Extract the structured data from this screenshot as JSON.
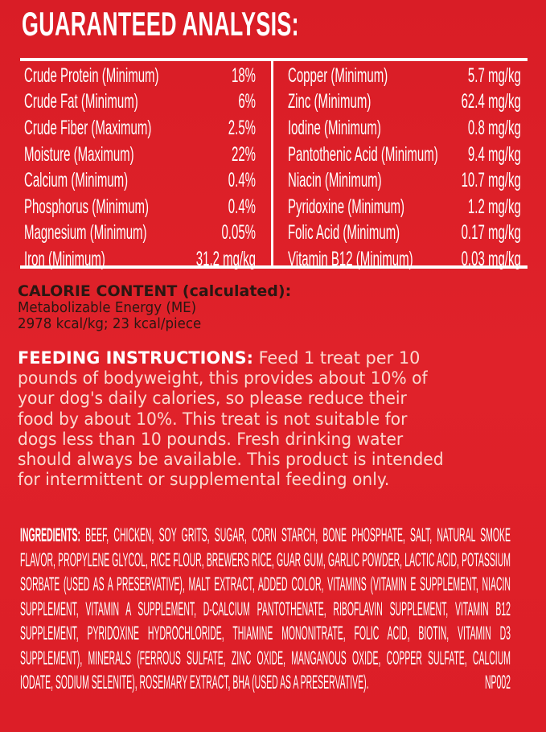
{
  "colors": {
    "background": "#dc1f27",
    "text": "#ffffff",
    "calorie_text": "#2b1712",
    "feeding_text": "#fbd9cf"
  },
  "title": "GUARANTEED ANALYSIS:",
  "analysis_left": [
    {
      "label": "Crude Protein (Minimum)",
      "value": "18%"
    },
    {
      "label": "Crude Fat (Minimum)",
      "value": "6%"
    },
    {
      "label": "Crude Fiber (Maximum)",
      "value": "2.5%"
    },
    {
      "label": "Moisture (Maximum)",
      "value": "22%"
    },
    {
      "label": "Calcium (Minimum)",
      "value": "0.4%"
    },
    {
      "label": "Phosphorus (Minimum)",
      "value": "0.4%"
    },
    {
      "label": "Magnesium (Minimum)",
      "value": "0.05%"
    },
    {
      "label": "Iron (Minimum)",
      "value": "31.2 mg/kg"
    }
  ],
  "analysis_right": [
    {
      "label": "Copper (Minimum)",
      "value": "5.7 mg/kg"
    },
    {
      "label": "Zinc (Minimum)",
      "value": "62.4 mg/kg"
    },
    {
      "label": "Iodine (Minimum)",
      "value": "0.8 mg/kg"
    },
    {
      "label": "Pantothenic Acid (Minimum)",
      "value": "9.4 mg/kg"
    },
    {
      "label": "Niacin (Minimum)",
      "value": "10.7 mg/kg"
    },
    {
      "label": "Pyridoxine (Minimum)",
      "value": "1.2 mg/kg"
    },
    {
      "label": "Folic Acid (Minimum)",
      "value": "0.17 mg/kg"
    },
    {
      "label": "Vitamin B12 (Minimum)",
      "value": "0.03 mg/kg"
    }
  ],
  "calorie": {
    "heading": "CALORIE CONTENT (calculated):",
    "line1": "Metabolizable Energy (ME)",
    "line2": "2978 kcal/kg; 23 kcal/piece"
  },
  "feeding": {
    "heading": "FEEDING INSTRUCTIONS:",
    "first_line": " Feed 1 treat per 10",
    "lines": [
      "pounds of bodyweight, this provides about 10% of",
      "your dog's daily calories, so please reduce their",
      "food by about 10%. This treat is not suitable for",
      "dogs less than 10 pounds. Fresh drinking water",
      "should always be available. This product is intended",
      "for intermittent or supplemental feeding only."
    ]
  },
  "ingredients": {
    "heading": "INGREDIENTS:",
    "first_line": " BEEF, CHICKEN, SOY GRITS, SUGAR, CORN STARCH, BONE PHOSPHATE, SALT, NATURAL SMOKE",
    "lines": [
      "FLAVOR, PROPYLENE GLYCOL, RICE FLOUR, BREWERS RICE, GUAR GUM, GARLIC POWDER, LACTIC ACID, POTASSIUM",
      "SORBATE (USED AS A PRESERVATIVE), MALT EXTRACT, ADDED COLOR, VITAMINS (VITAMIN E SUPPLEMENT, NIACIN",
      "SUPPLEMENT, VITAMIN A SUPPLEMENT, D-CALCIUM PANTOTHENATE, RIBOFLAVIN SUPPLEMENT, VITAMIN B12",
      "SUPPLEMENT, PYRIDOXINE HYDROCHLORIDE, THIAMINE MONONITRATE, FOLIC ACID, BIOTIN, VITAMIN D3",
      "SUPPLEMENT), MINERALS (FERROUS SULFATE, ZINC OXIDE, MANGANOUS OXIDE, COPPER SULFATE, CALCIUM"
    ],
    "last_line": "IODATE, SODIUM SELENITE), ROSEMARY EXTRACT, BHA (USED AS A PRESERVATIVE).",
    "code": "NP002"
  }
}
